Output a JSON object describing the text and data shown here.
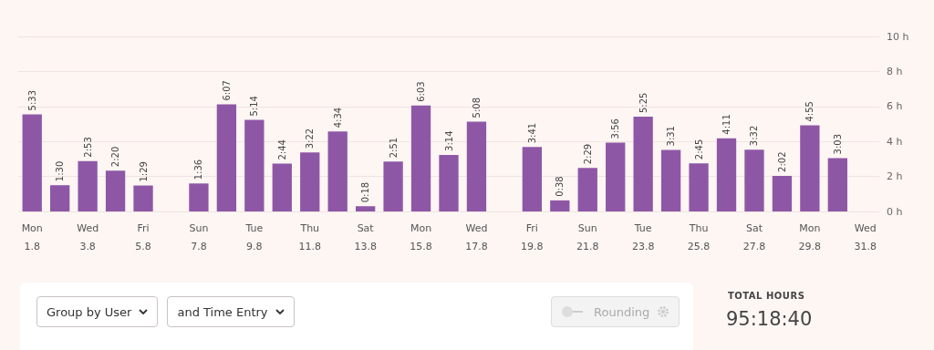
{
  "chart_data": {
    "type": "bar",
    "categories": [
      "Mon\n1.8",
      null,
      "Wed\n3.8",
      null,
      "Fri\n5.8",
      null,
      "Sun\n7.8",
      null,
      "Tue\n9.8",
      null,
      "Thu\n11.8",
      null,
      "Sat\n13.8",
      null,
      "Mon\n15.8",
      null,
      "Wed\n17.8",
      null,
      "Fri\n19.8",
      null,
      "Sun\n21.8",
      null,
      "Tue\n23.8",
      null,
      "Thu\n25.8",
      null,
      "Sat\n27.8",
      null,
      "Mon\n29.8",
      null,
      "Wed\n31.8"
    ],
    "values": [
      5.55,
      1.5,
      2.883,
      2.333,
      1.483,
      null,
      1.6,
      6.117,
      5.233,
      2.733,
      3.367,
      4.567,
      0.3,
      2.85,
      6.05,
      3.233,
      5.133,
      null,
      3.683,
      0.633,
      2.483,
      3.933,
      5.417,
      3.517,
      2.75,
      4.183,
      3.533,
      2.033,
      4.917,
      3.05,
      null
    ],
    "value_labels": [
      "5:33",
      "1:30",
      "2:53",
      "2:20",
      "1:29",
      null,
      "1:36",
      "6:07",
      "5:14",
      "2:44",
      "3:22",
      "4:34",
      "0:18",
      "2:51",
      "6:03",
      "3:14",
      "5:08",
      null,
      "3:41",
      "0:38",
      "2:29",
      "3:56",
      "5:25",
      "3:31",
      "2:45",
      "4:11",
      "3:32",
      "2:02",
      "4:55",
      "3:03",
      null
    ],
    "color": "#8e57a6",
    "ylim": [
      0,
      10
    ],
    "yticks": [
      {
        "value": 0,
        "label": "0 h"
      },
      {
        "value": 2,
        "label": "2 h"
      },
      {
        "value": 4,
        "label": "4 h"
      },
      {
        "value": 6,
        "label": "6 h"
      },
      {
        "value": 8,
        "label": "8 h"
      },
      {
        "value": 10,
        "label": "10 h"
      }
    ],
    "grid": "y",
    "annotations": [
      "Group by User",
      "and Time Entry",
      "Rounding",
      "TOTAL HOURS",
      "95:18:40"
    ]
  }
}
